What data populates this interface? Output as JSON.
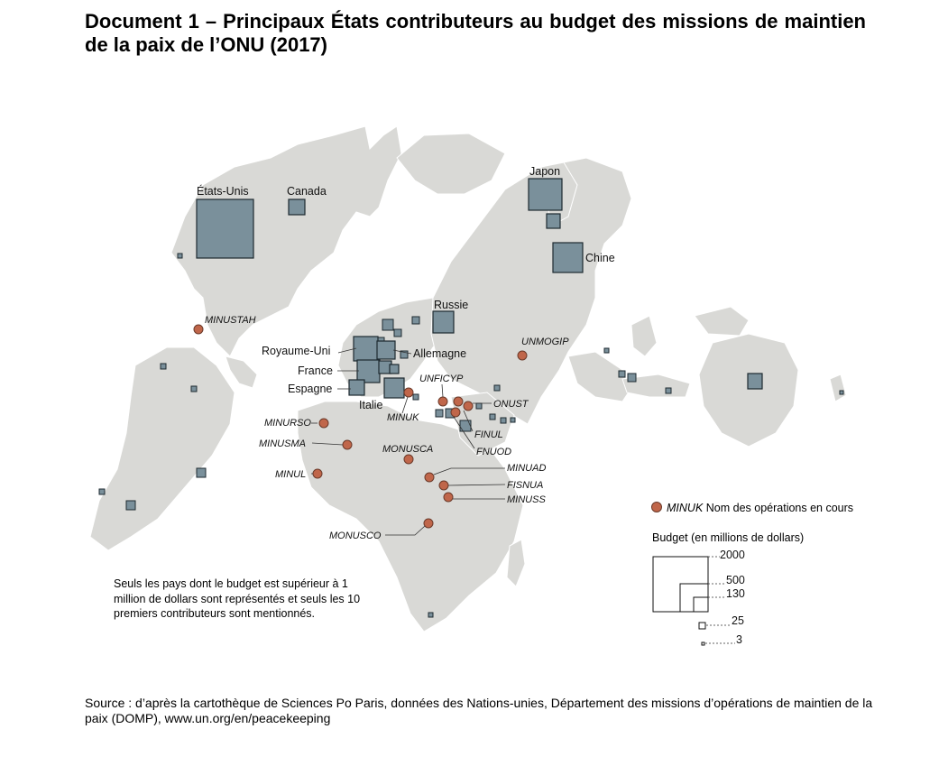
{
  "title": "Document 1 – Principaux États contributeurs au budget des missions de maintien de la paix de l’ONU (2017)",
  "note": "Seuls les pays dont le budget est supérieur à 1 million de dollars sont représentés et seuls les 10 premiers contributeurs sont mentionnés.",
  "source": "Source : d’après la cartothèque de Sciences Po Paris, données des Nations-unies, Département des missions d’opérations de maintien de la paix (DOMP), www.un.org/en/peacekeeping",
  "legend": {
    "operation_example": "MINUK",
    "operation_text": "Nom des opérations en cours",
    "budget_title": "Budget (en millions de dollars)",
    "budget_values": [
      "2000",
      "500",
      "130",
      "25",
      "3"
    ]
  },
  "countries": {
    "usa": "États-Unis",
    "canada": "Canada",
    "japon": "Japon",
    "chine": "Chine",
    "russie": "Russie",
    "royaume_uni": "Royaume-Uni",
    "allemagne": "Allemagne",
    "france": "France",
    "espagne": "Espagne",
    "italie": "Italie"
  },
  "operations": {
    "minustah": "MINUSTAH",
    "unmogip": "UNMOGIP",
    "unficyp": "UNFICYP",
    "onust": "ONUST",
    "minuk": "MINUK",
    "finul": "FINUL",
    "fnuod": "FNUOD",
    "minurso": "MINURSO",
    "minusma": "MINUSMA",
    "monusca": "MONUSCA",
    "minuad": "MINUAD",
    "fisnua": "FISNUA",
    "minuss": "MINUSS",
    "minul": "MINUL",
    "monusco": "MONUSCO"
  },
  "colors": {
    "land": "#d9d9d6",
    "budget_square": "#7a909b",
    "operation_dot": "#c0664a"
  }
}
